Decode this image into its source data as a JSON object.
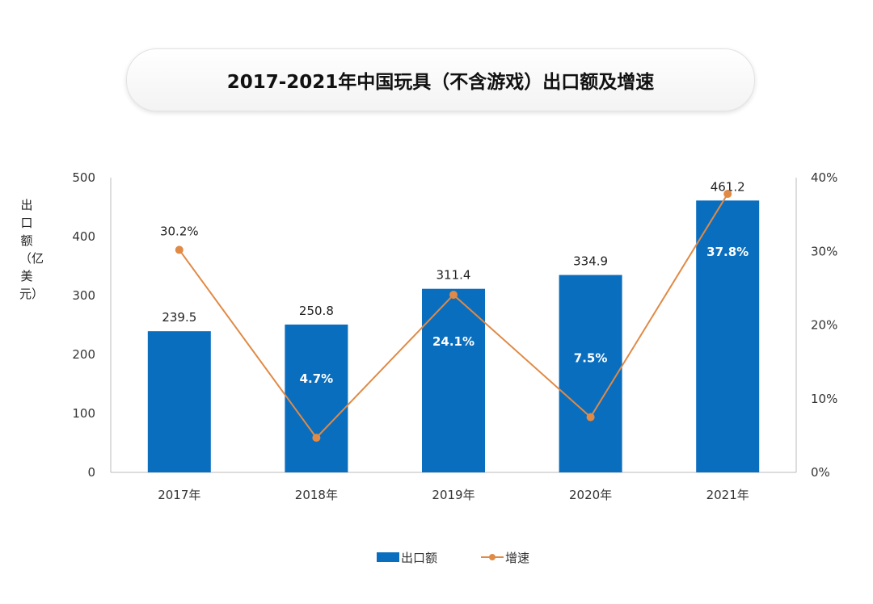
{
  "chart_data": {
    "type": "bar+line",
    "title": "2017-2021年中国玩具（不含游戏）出口额及增速",
    "categories": [
      "2017年",
      "2018年",
      "2019年",
      "2020年",
      "2021年"
    ],
    "ylabel": "出口额（亿美元）",
    "ylim": [
      0,
      500
    ],
    "yticks": [
      "0",
      "100",
      "200",
      "300",
      "400",
      "500"
    ],
    "y2lim": [
      0,
      40
    ],
    "y2ticks": [
      "0%",
      "10%",
      "20%",
      "30%",
      "40%"
    ],
    "series": [
      {
        "name": "出口额",
        "type": "bar",
        "axis": "left",
        "color": "#0a6ebf",
        "values": [
          239.5,
          250.8,
          311.4,
          334.9,
          461.2
        ],
        "labels": [
          "239.5",
          "250.8",
          "311.4",
          "334.9",
          "461.2"
        ]
      },
      {
        "name": "增速",
        "type": "line",
        "axis": "right",
        "color": "#e08a45",
        "values": [
          30.2,
          4.7,
          24.1,
          7.5,
          37.8
        ],
        "labels": [
          "30.2%",
          "4.7%",
          "24.1%",
          "7.5%",
          "37.8%"
        ]
      }
    ],
    "legend": "bottom",
    "grid": false
  }
}
